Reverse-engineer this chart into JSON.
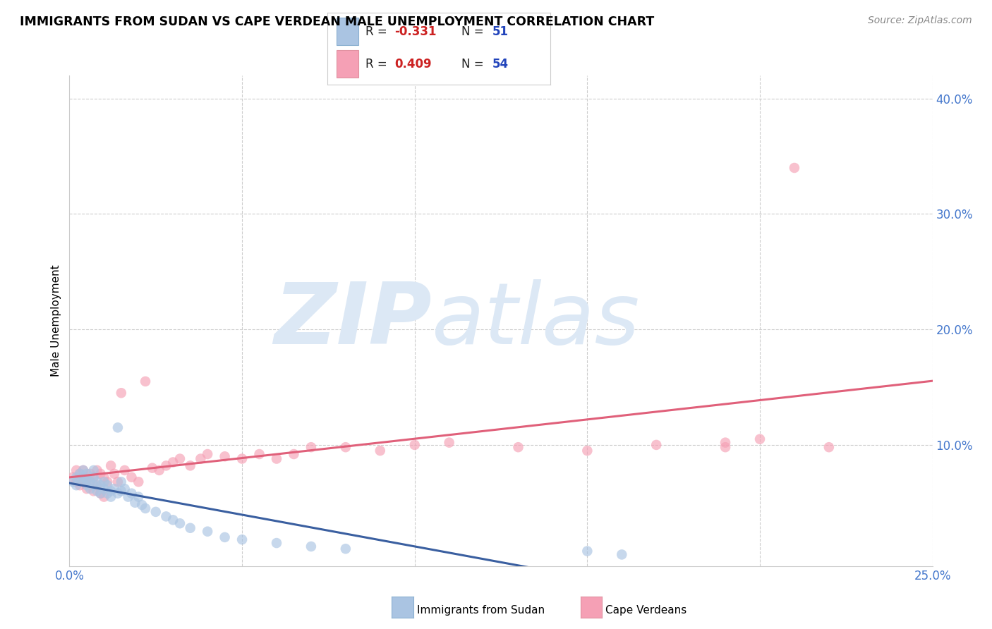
{
  "title": "IMMIGRANTS FROM SUDAN VS CAPE VERDEAN MALE UNEMPLOYMENT CORRELATION CHART",
  "source": "Source: ZipAtlas.com",
  "ylabel": "Male Unemployment",
  "xlim": [
    0.0,
    0.25
  ],
  "ylim": [
    -0.005,
    0.42
  ],
  "right_yticks": [
    0.0,
    0.1,
    0.2,
    0.3,
    0.4
  ],
  "right_yticklabels": [
    "",
    "10.0%",
    "20.0%",
    "30.0%",
    "40.0%"
  ],
  "xtick_vals": [
    0.0,
    0.05,
    0.1,
    0.15,
    0.2,
    0.25
  ],
  "color_blue": "#aac4e2",
  "color_blue_line": "#3a5fa0",
  "color_pink": "#f5a0b5",
  "color_pink_line": "#e0607a",
  "watermark_zip": "ZIP",
  "watermark_atlas": "atlas",
  "watermark_color": "#dce8f5",
  "sudan_x": [
    0.001,
    0.002,
    0.002,
    0.003,
    0.003,
    0.004,
    0.004,
    0.004,
    0.005,
    0.005,
    0.005,
    0.006,
    0.006,
    0.007,
    0.007,
    0.007,
    0.008,
    0.008,
    0.009,
    0.009,
    0.01,
    0.01,
    0.011,
    0.011,
    0.012,
    0.012,
    0.013,
    0.014,
    0.014,
    0.015,
    0.015,
    0.016,
    0.017,
    0.018,
    0.019,
    0.02,
    0.021,
    0.022,
    0.025,
    0.028,
    0.03,
    0.032,
    0.035,
    0.04,
    0.045,
    0.05,
    0.06,
    0.07,
    0.08,
    0.15,
    0.16
  ],
  "sudan_y": [
    0.068,
    0.072,
    0.065,
    0.07,
    0.075,
    0.068,
    0.072,
    0.078,
    0.065,
    0.07,
    0.075,
    0.062,
    0.068,
    0.065,
    0.072,
    0.078,
    0.06,
    0.068,
    0.058,
    0.065,
    0.062,
    0.068,
    0.058,
    0.065,
    0.06,
    0.055,
    0.062,
    0.115,
    0.058,
    0.06,
    0.068,
    0.062,
    0.055,
    0.058,
    0.05,
    0.055,
    0.048,
    0.045,
    0.042,
    0.038,
    0.035,
    0.032,
    0.028,
    0.025,
    0.02,
    0.018,
    0.015,
    0.012,
    0.01,
    0.008,
    0.005
  ],
  "capeverde_x": [
    0.001,
    0.002,
    0.002,
    0.003,
    0.003,
    0.004,
    0.004,
    0.005,
    0.005,
    0.006,
    0.006,
    0.007,
    0.007,
    0.008,
    0.008,
    0.009,
    0.009,
    0.01,
    0.01,
    0.011,
    0.012,
    0.013,
    0.014,
    0.015,
    0.016,
    0.018,
    0.02,
    0.022,
    0.024,
    0.026,
    0.028,
    0.03,
    0.032,
    0.035,
    0.038,
    0.04,
    0.045,
    0.05,
    0.055,
    0.06,
    0.065,
    0.07,
    0.08,
    0.09,
    0.1,
    0.11,
    0.13,
    0.15,
    0.17,
    0.19,
    0.2,
    0.21,
    0.22,
    0.19
  ],
  "capeverde_y": [
    0.072,
    0.068,
    0.078,
    0.065,
    0.075,
    0.068,
    0.078,
    0.072,
    0.062,
    0.068,
    0.075,
    0.06,
    0.072,
    0.065,
    0.078,
    0.058,
    0.075,
    0.055,
    0.072,
    0.068,
    0.082,
    0.075,
    0.068,
    0.145,
    0.078,
    0.072,
    0.068,
    0.155,
    0.08,
    0.078,
    0.082,
    0.085,
    0.088,
    0.082,
    0.088,
    0.092,
    0.09,
    0.088,
    0.092,
    0.088,
    0.092,
    0.098,
    0.098,
    0.095,
    0.1,
    0.102,
    0.098,
    0.095,
    0.1,
    0.098,
    0.105,
    0.34,
    0.098,
    0.102
  ]
}
